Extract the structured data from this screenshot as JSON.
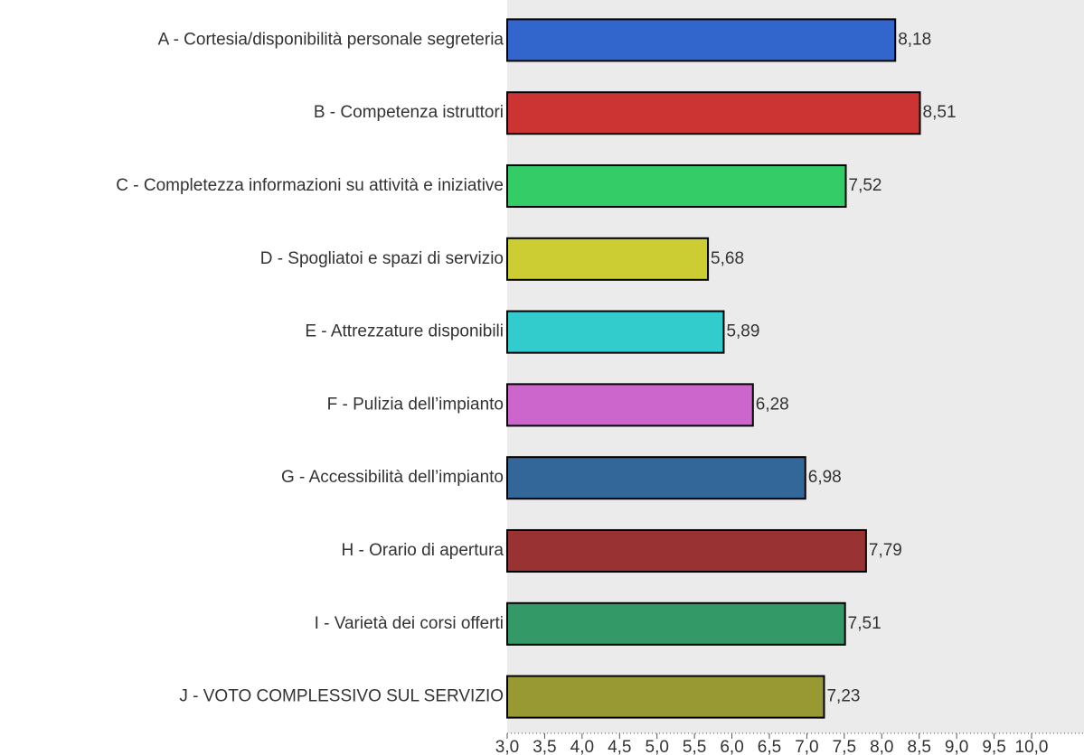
{
  "chart_data": {
    "type": "bar",
    "orientation": "horizontal",
    "categories": [
      "A - Cortesia/disponibilità personale segreteria",
      "B - Competenza istruttori",
      "C - Completezza informazioni su attività e iniziative",
      "D - Spogliatoi e spazi di servizio",
      "E - Attrezzature disponibili",
      "F - Pulizia dell’impianto",
      "G - Accessibilità dell’impianto",
      "H - Orario di apertura",
      "I - Varietà dei corsi offerti",
      "J - VOTO COMPLESSIVO SUL SERVIZIO"
    ],
    "values": [
      8.18,
      8.51,
      7.52,
      5.68,
      5.89,
      6.28,
      6.98,
      7.79,
      7.51,
      7.23
    ],
    "value_labels": [
      "8,18",
      "8,51",
      "7,52",
      "5,68",
      "5,89",
      "6,28",
      "6,98",
      "7,79",
      "7,51",
      "7,23"
    ],
    "colors": [
      "#3366cc",
      "#cc3333",
      "#33cc66",
      "#cccc33",
      "#33cccc",
      "#cc66cc",
      "#336699",
      "#993333",
      "#339966",
      "#999933"
    ],
    "xlim": [
      3,
      10.7
    ],
    "xticks": [
      {
        "value": 3,
        "label": "3,0"
      },
      {
        "value": 3.5,
        "label": "3,5"
      },
      {
        "value": 4,
        "label": "4,0"
      },
      {
        "value": 4.5,
        "label": "4,5"
      },
      {
        "value": 5,
        "label": "5,0"
      },
      {
        "value": 5.5,
        "label": "5,5"
      },
      {
        "value": 6,
        "label": "6,0"
      },
      {
        "value": 6.5,
        "label": "6,5"
      },
      {
        "value": 7,
        "label": "7,0"
      },
      {
        "value": 7.5,
        "label": "7,5"
      },
      {
        "value": 8,
        "label": "8,0"
      },
      {
        "value": 8.5,
        "label": "8,5"
      },
      {
        "value": 9,
        "label": "9,0"
      },
      {
        "value": 9.5,
        "label": "9,5"
      },
      {
        "value": 10,
        "label": "10,0"
      }
    ]
  }
}
